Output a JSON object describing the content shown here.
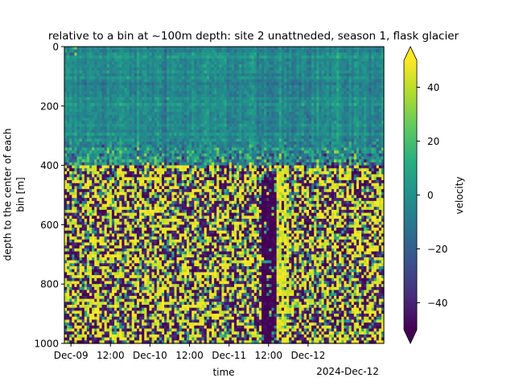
{
  "chart_data": {
    "type": "heatmap",
    "title": "relative to a bin at ~100m depth: site 2 unattneded, season 1, flask glacier",
    "xlabel": "time",
    "ylabel_line1": "depth to the center of each",
    "ylabel_line2": "bin [m]",
    "x_tick_labels": [
      "Dec-09",
      "12:00",
      "Dec-10",
      "12:00",
      "Dec-11",
      "12:00",
      "Dec-12"
    ],
    "x_offset_label": "2024-Dec-12",
    "x_range": [
      "2024-12-08 22:00",
      "2024-12-12 23:00"
    ],
    "y_ticks": [
      0,
      200,
      400,
      600,
      800,
      1000
    ],
    "ylim": [
      1000,
      0
    ],
    "y_inverted": true,
    "colorbar": {
      "label": "velocity",
      "ticks": [
        40,
        20,
        0,
        -20,
        -40
      ],
      "tick_labels": [
        "40",
        "20",
        "0",
        "−20",
        "−40"
      ],
      "range": [
        -50,
        50
      ],
      "extend": "both",
      "colormap": "viridis"
    },
    "features": {
      "low_noise_depth_range": [
        0,
        400
      ],
      "noisy_depth_range": [
        400,
        1000
      ],
      "persistent_negative_band_time": "2024-12-11 12:00"
    }
  }
}
